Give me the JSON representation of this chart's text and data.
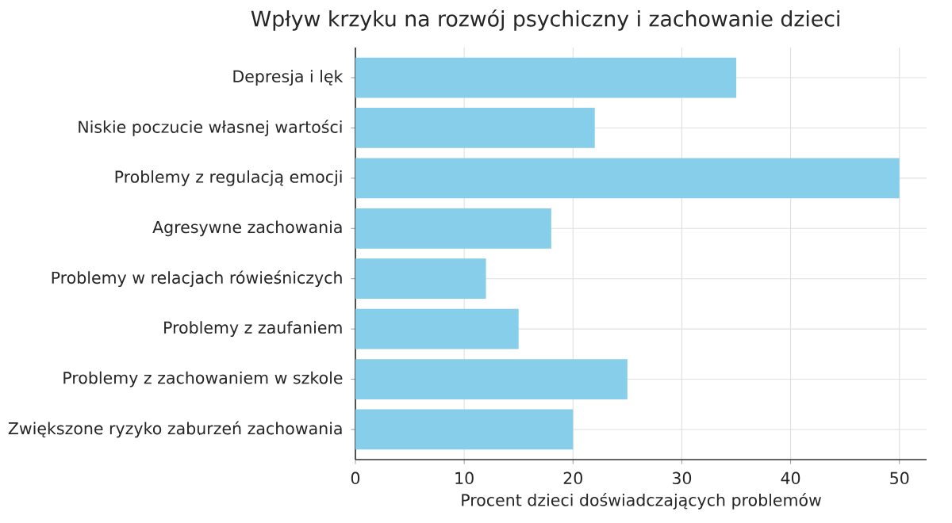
{
  "chart_data": {
    "type": "bar",
    "orientation": "horizontal",
    "title": "Wpływ krzyku na rozwój psychiczny i zachowanie dzieci",
    "xlabel": "Procent dzieci doświadczających problemów",
    "categories": [
      "Depresja i lęk",
      "Niskie poczucie własnej wartości",
      "Problemy z regulacją emocji",
      "Agresywne zachowania",
      "Problemy w relacjach rówieśniczych",
      "Problemy z zaufaniem",
      "Problemy z zachowaniem w szkole",
      "Zwiększone ryzyko zaburzeń zachowania"
    ],
    "values": [
      35,
      22,
      50,
      18,
      12,
      15,
      25,
      20
    ],
    "color": "#87ceeb",
    "xlim": [
      0,
      52.5
    ],
    "xticks": [
      0,
      10,
      20,
      30,
      40,
      50
    ],
    "grid": true
  }
}
